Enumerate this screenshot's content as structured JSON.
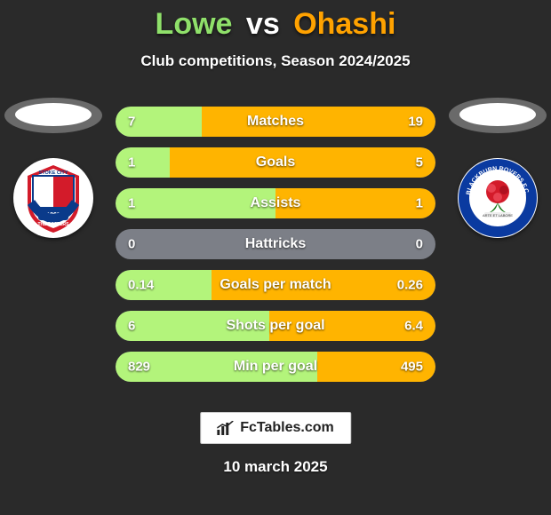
{
  "background_color": "#2a2a2a",
  "title": {
    "left_name": "Lowe",
    "vs": "vs",
    "right_name": "Ohashi",
    "left_color": "#8fe06a",
    "vs_color": "#ffffff",
    "right_color": "#ffa200",
    "fontsize": 34
  },
  "subtitle": {
    "text": "Club competitions, Season 2024/2025",
    "fontsize": 17
  },
  "players": {
    "left": {
      "head_shadow": "#6a6a6a",
      "crest_primary": "#d31b2a",
      "crest_secondary": "#0a3a8a",
      "crest_text": "STOKE CITY",
      "crest_text_color": "#ffffff"
    },
    "right": {
      "head_shadow": "#6a6a6a",
      "crest_primary": "#0a3aa0",
      "crest_secondary": "#d31b2a",
      "crest_text": "BLACKBURN ROVERS",
      "crest_text_color": "#ffffff"
    }
  },
  "bars": {
    "track_color": "#7c7f87",
    "left_fill_color": "#b3f47b",
    "right_fill_color": "#ffb400",
    "label_fontsize": 16,
    "value_fontsize": 15,
    "rows": [
      {
        "label": "Matches",
        "left_val": "7",
        "right_val": "19",
        "left_pct": 27,
        "right_pct": 73
      },
      {
        "label": "Goals",
        "left_val": "1",
        "right_val": "5",
        "left_pct": 17,
        "right_pct": 83
      },
      {
        "label": "Assists",
        "left_val": "1",
        "right_val": "1",
        "left_pct": 50,
        "right_pct": 50
      },
      {
        "label": "Hattricks",
        "left_val": "0",
        "right_val": "0",
        "left_pct": 0,
        "right_pct": 0
      },
      {
        "label": "Goals per match",
        "left_val": "0.14",
        "right_val": "0.26",
        "left_pct": 30,
        "right_pct": 70
      },
      {
        "label": "Shots per goal",
        "left_val": "6",
        "right_val": "6.4",
        "left_pct": 48,
        "right_pct": 52
      },
      {
        "label": "Min per goal",
        "left_val": "829",
        "right_val": "495",
        "left_pct": 63,
        "right_pct": 37
      }
    ]
  },
  "footer": {
    "site": "FcTables.com",
    "icon": "chart-icon",
    "date": "10 march 2025",
    "date_fontsize": 17
  }
}
